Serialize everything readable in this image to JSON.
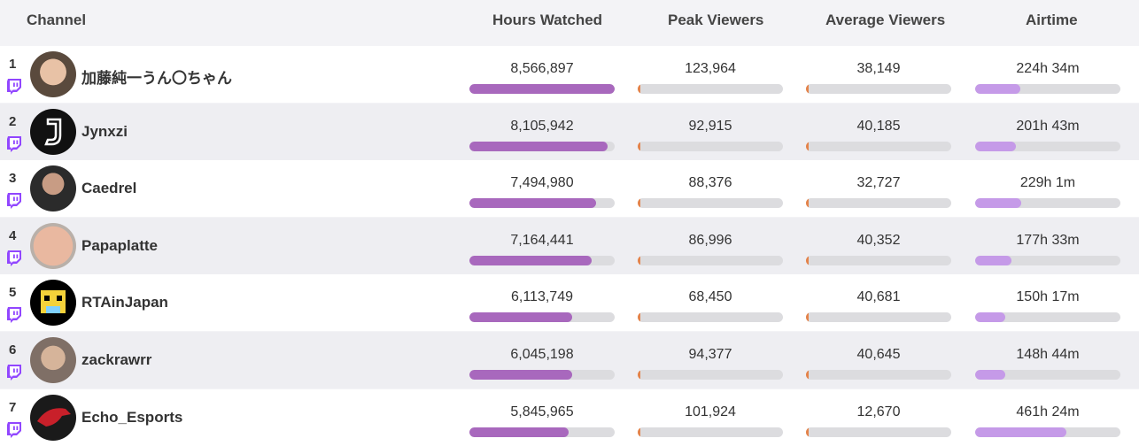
{
  "header": {
    "channel": "Channel",
    "hours_watched": "Hours Watched",
    "peak_viewers": "Peak Viewers",
    "average_viewers": "Average Viewers",
    "airtime": "Airtime"
  },
  "colors": {
    "hours_bar": "#a868bd",
    "viewer_bar": "#e4834a",
    "airtime_bar": "#c59ae8",
    "twitch": "#9146ff"
  },
  "rows": [
    {
      "rank": "1",
      "name": "加藤純一うん〇ちゃん",
      "hours": "8,566,897",
      "peak": "123,964",
      "avg": "38,149",
      "airtime": "224h 34m",
      "hours_pct": 100,
      "peak_pct": 2,
      "avg_pct": 2,
      "air_pct": 31
    },
    {
      "rank": "2",
      "name": "Jynxzi",
      "hours": "8,105,942",
      "peak": "92,915",
      "avg": "40,185",
      "airtime": "201h 43m",
      "hours_pct": 95,
      "peak_pct": 2,
      "avg_pct": 2,
      "air_pct": 28
    },
    {
      "rank": "3",
      "name": "Caedrel",
      "hours": "7,494,980",
      "peak": "88,376",
      "avg": "32,727",
      "airtime": "229h 1m",
      "hours_pct": 87,
      "peak_pct": 2,
      "avg_pct": 2,
      "air_pct": 32
    },
    {
      "rank": "4",
      "name": "Papaplatte",
      "hours": "7,164,441",
      "peak": "86,996",
      "avg": "40,352",
      "airtime": "177h 33m",
      "hours_pct": 84,
      "peak_pct": 2,
      "avg_pct": 2,
      "air_pct": 25
    },
    {
      "rank": "5",
      "name": "RTAinJapan",
      "hours": "6,113,749",
      "peak": "68,450",
      "avg": "40,681",
      "airtime": "150h 17m",
      "hours_pct": 71,
      "peak_pct": 2,
      "avg_pct": 2,
      "air_pct": 21
    },
    {
      "rank": "6",
      "name": "zackrawrr",
      "hours": "6,045,198",
      "peak": "94,377",
      "avg": "40,645",
      "airtime": "148h 44m",
      "hours_pct": 71,
      "peak_pct": 2,
      "avg_pct": 2,
      "air_pct": 21
    },
    {
      "rank": "7",
      "name": "Echo_Esports",
      "hours": "5,845,965",
      "peak": "101,924",
      "avg": "12,670",
      "airtime": "461h 24m",
      "hours_pct": 68,
      "peak_pct": 2,
      "avg_pct": 2,
      "air_pct": 63
    }
  ]
}
